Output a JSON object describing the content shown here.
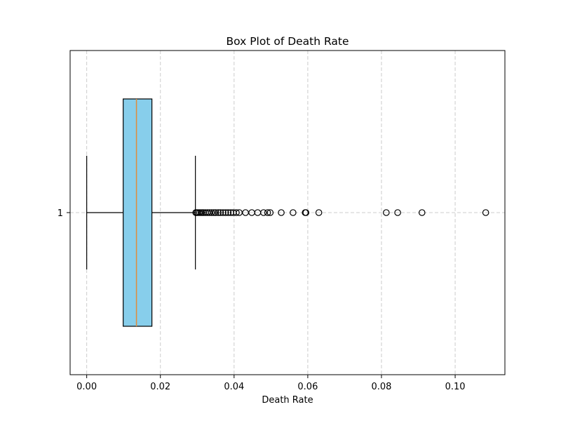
{
  "chart_data": {
    "type": "box",
    "orientation": "horizontal",
    "title": "Box Plot of Death Rate",
    "xlabel": "Death Rate",
    "ylabel": "",
    "xlim": [
      -0.0045,
      0.1135
    ],
    "x_ticks": [
      0.0,
      0.02,
      0.04,
      0.06,
      0.08,
      0.1
    ],
    "x_tick_labels": [
      "0.00",
      "0.02",
      "0.04",
      "0.06",
      "0.08",
      "0.10"
    ],
    "y_ticks": [
      1
    ],
    "y_tick_labels": [
      "1"
    ],
    "grid": true,
    "box": {
      "position": 1,
      "whisker_low": 0.0,
      "q1": 0.0099,
      "median": 0.0135,
      "q3": 0.0177,
      "whisker_high": 0.0295,
      "outliers": [
        0.0296,
        0.0299,
        0.0302,
        0.0306,
        0.031,
        0.0314,
        0.0318,
        0.0323,
        0.0328,
        0.0333,
        0.0339,
        0.0345,
        0.035,
        0.0357,
        0.0363,
        0.037,
        0.0377,
        0.0384,
        0.0391,
        0.0398,
        0.0406,
        0.0414,
        0.0431,
        0.0448,
        0.0464,
        0.048,
        0.0491,
        0.0498,
        0.0528,
        0.056,
        0.0593,
        0.0595,
        0.063,
        0.0813,
        0.0844,
        0.091,
        0.1083
      ]
    },
    "colors": {
      "box_fill": "#87ceeb",
      "median": "#e08c3a",
      "lines": "#000000",
      "grid": "#cccccc"
    }
  }
}
